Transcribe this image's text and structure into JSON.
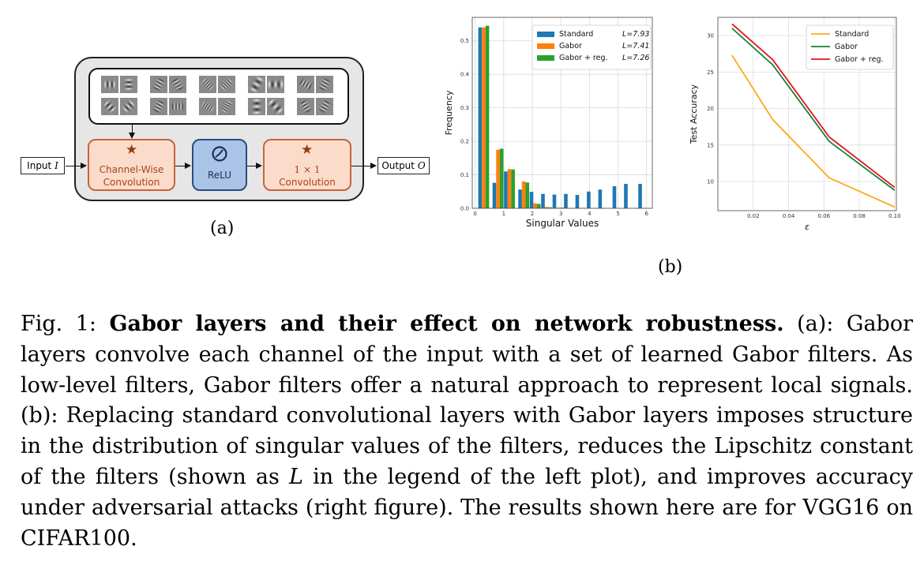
{
  "figure": {
    "panel_a": {
      "input_label": "Input",
      "input_symbol": "I",
      "output_label": "Output",
      "output_symbol": "O",
      "block_channelwise": [
        "Channel-Wise",
        "Convolution"
      ],
      "block_relu": "ReLU",
      "block_1x1": [
        "1 × 1",
        "Convolution"
      ],
      "sublabel": "(a)"
    },
    "panel_b": {
      "sublabel": "(b)"
    }
  },
  "caption": {
    "prefix": "Fig. 1:",
    "title": "Gabor layers and their effect on network robustness.",
    "body_1": " (a): Gabor layers convolve each channel of the input with a set of learned Gabor filters. As low-level filters, Gabor filters offer a natural approach to represent local signals. (b): Replacing standard convolutional layers with Gabor layers imposes structure in the distribution of singular values of the filters, reduces the Lipschitz constant of the filters (shown as ",
    "var": "L",
    "body_2": " in the legend of the left plot), and improves accuracy under adversarial attacks (right figure). The results shown here are for VGG16 on CIFAR100."
  },
  "colors": {
    "standard_hist": "#1f77b4",
    "gabor_hist": "#ff7f0e",
    "gabor_reg_hist": "#2ca02c",
    "standard_line": "#ffa71a",
    "gabor_line": "#1a7f3a",
    "gabor_reg_line": "#e3121b",
    "block_orange": "#fbdcca",
    "block_blue": "#a9c4e6"
  },
  "chart_data": [
    {
      "type": "bar",
      "xlabel": "Singular Values",
      "ylabel": "Frequency",
      "xlim": [
        -0.1,
        6.2
      ],
      "ylim": [
        0,
        0.57
      ],
      "xticks": [
        0,
        1,
        2,
        3,
        4,
        5,
        6
      ],
      "yticks": [
        0.0,
        0.1,
        0.2,
        0.3,
        0.4,
        0.5
      ],
      "ytick_labels": [
        "0.0",
        "0.1",
        "0.2",
        "0.3",
        "0.4",
        "0.5"
      ],
      "grid": true,
      "legend_position": "top-right",
      "bin_centers": [
        0.3,
        0.8,
        1.2,
        1.7,
        2.1,
        2.5,
        2.9,
        3.3,
        3.7,
        4.1,
        4.5,
        5.0,
        5.4,
        5.9
      ],
      "series": [
        {
          "name": "Standard",
          "legend_value": "L=7.93",
          "values": [
            0.54,
            0.076,
            0.11,
            0.056,
            0.049,
            0.043,
            0.041,
            0.043,
            0.04,
            0.05,
            0.056,
            0.066,
            0.073,
            0.073
          ]
        },
        {
          "name": "Gabor",
          "legend_value": "L=7.41",
          "values": [
            0.54,
            0.175,
            0.117,
            0.08,
            0.015,
            0.004,
            0.002,
            0.001,
            0.001,
            0.001,
            0.0,
            0.0,
            0.0,
            0.0
          ]
        },
        {
          "name": "Gabor + reg.",
          "legend_value": "L=7.26",
          "values": [
            0.545,
            0.178,
            0.116,
            0.077,
            0.013,
            0.003,
            0.002,
            0.001,
            0.001,
            0.001,
            0.0,
            0.0,
            0.0,
            0.0
          ]
        }
      ]
    },
    {
      "type": "line",
      "xlabel": "ε",
      "ylabel": "Test Accuracy",
      "xlim": [
        0.0,
        0.101
      ],
      "ylim": [
        6.0,
        32.5
      ],
      "xticks": [
        0.02,
        0.04,
        0.06,
        0.08,
        0.1
      ],
      "xtick_labels": [
        "0.02",
        "0.04",
        "0.06",
        "0.08",
        "0.10"
      ],
      "yticks": [
        10,
        15,
        20,
        25,
        30
      ],
      "ytick_labels": [
        "10",
        "15",
        "20",
        "25",
        "30"
      ],
      "grid": true,
      "legend_position": "top-right",
      "x": [
        0.008,
        0.031,
        0.063,
        0.1
      ],
      "series": [
        {
          "name": "Standard",
          "values": [
            27.3,
            18.5,
            10.5,
            6.5
          ]
        },
        {
          "name": "Gabor",
          "values": [
            31.0,
            26.0,
            15.5,
            8.8
          ]
        },
        {
          "name": "Gabor + reg.",
          "values": [
            31.6,
            26.7,
            16.1,
            9.2
          ]
        }
      ]
    }
  ]
}
